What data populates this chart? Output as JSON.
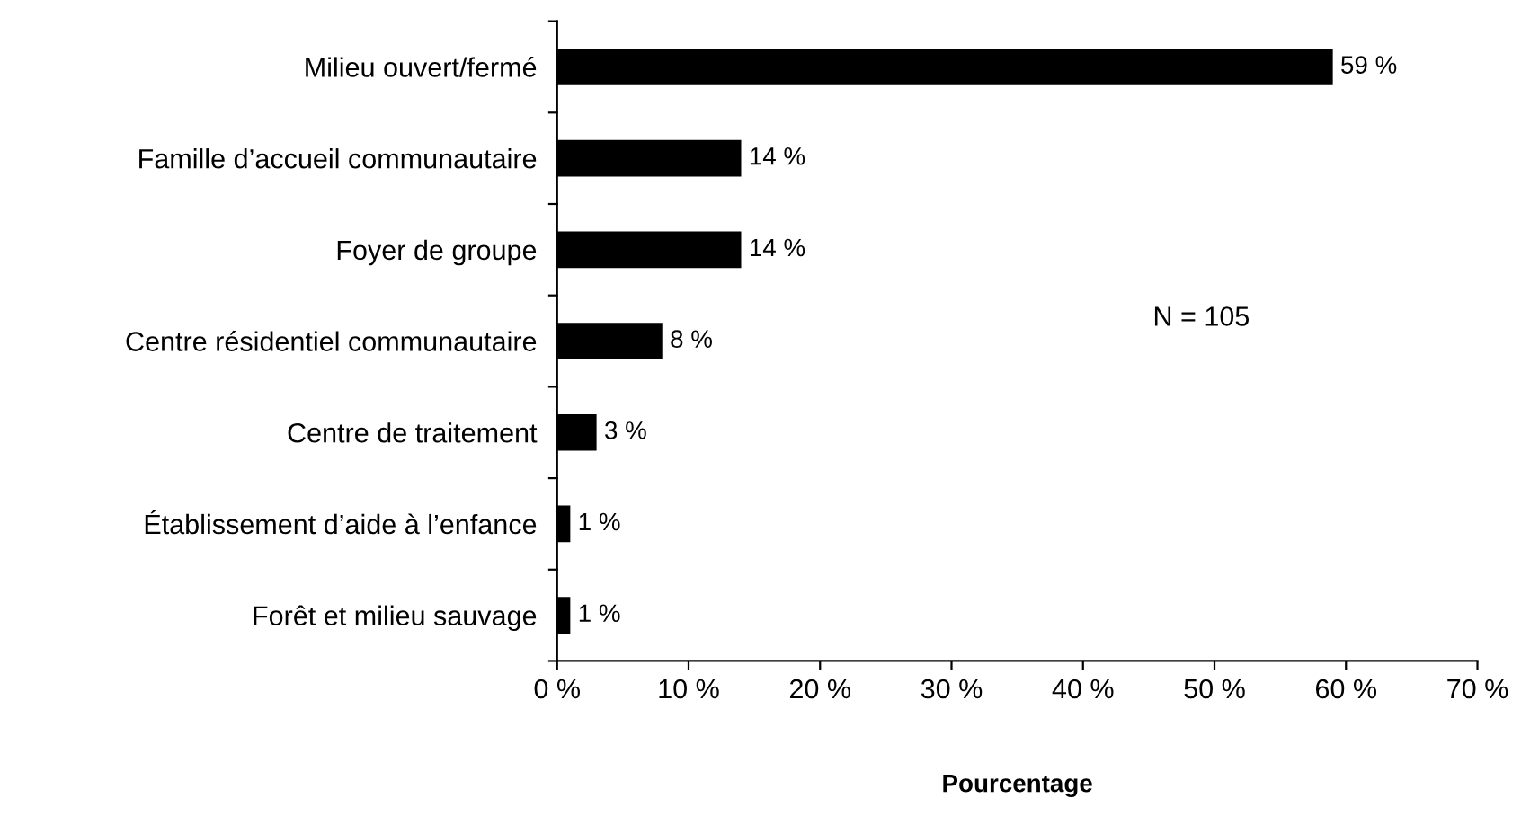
{
  "chart_data": {
    "type": "bar",
    "orientation": "horizontal",
    "xlabel": "Pourcentage",
    "categories": [
      "Milieu ouvert/fermé",
      "Famille d’accueil communautaire",
      "Foyer de groupe",
      "Centre résidentiel communautaire",
      "Centre de traitement",
      "Établissement d’aide à l’enfance",
      "Forêt et milieu sauvage"
    ],
    "values": [
      59,
      14,
      14,
      8,
      3,
      1,
      1
    ],
    "value_labels": [
      "59 %",
      "14 %",
      "14 %",
      "8 %",
      "3 %",
      "1 %",
      "1 %"
    ],
    "color": "#000000",
    "xlim": [
      0,
      70
    ],
    "xticks": [
      {
        "value": 0,
        "label": "0 %"
      },
      {
        "value": 10,
        "label": "10 %"
      },
      {
        "value": 20,
        "label": "20 %"
      },
      {
        "value": 30,
        "label": "30 %"
      },
      {
        "value": 40,
        "label": "40 %"
      },
      {
        "value": 50,
        "label": "50 %"
      },
      {
        "value": 60,
        "label": "60 %"
      },
      {
        "value": 70,
        "label": "70 %"
      }
    ],
    "annotations": [
      "N = 105"
    ],
    "grid": false
  }
}
